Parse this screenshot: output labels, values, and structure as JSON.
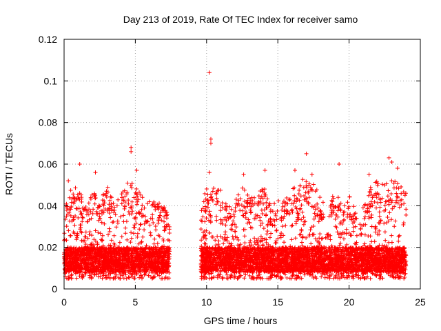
{
  "chart_data": {
    "type": "scatter",
    "title": "Day 213 of 2019, Rate Of TEC Index for receiver samo",
    "xlabel": "GPS time / hours",
    "ylabel": "ROTI / TECUs",
    "xlim": [
      0,
      25
    ],
    "ylim": [
      0,
      0.12
    ],
    "xticks": [
      "0",
      "5",
      "10",
      "15",
      "20",
      "25"
    ],
    "yticks": [
      "0",
      "0.02",
      "0.04",
      "0.06",
      "0.08",
      "0.1",
      "0.12"
    ],
    "grid": true,
    "marker": "+",
    "color": "#ff0000",
    "data_segments": [
      {
        "x_start": 0.0,
        "x_end": 7.4
      },
      {
        "x_start": 9.6,
        "x_end": 24.0
      }
    ],
    "notable_points": [
      {
        "x": 10.2,
        "y": 0.104
      },
      {
        "x": 10.3,
        "y": 0.072
      },
      {
        "x": 10.3,
        "y": 0.07
      },
      {
        "x": 4.7,
        "y": 0.068
      },
      {
        "x": 4.7,
        "y": 0.066
      },
      {
        "x": 17.0,
        "y": 0.065
      },
      {
        "x": 22.8,
        "y": 0.063
      },
      {
        "x": 1.1,
        "y": 0.06
      },
      {
        "x": 19.3,
        "y": 0.06
      },
      {
        "x": 23.0,
        "y": 0.061
      },
      {
        "x": 23.4,
        "y": 0.058
      },
      {
        "x": 10.2,
        "y": 0.056
      },
      {
        "x": 14.1,
        "y": 0.057
      },
      {
        "x": 0.3,
        "y": 0.052
      },
      {
        "x": 5.1,
        "y": 0.057
      },
      {
        "x": 2.2,
        "y": 0.056
      },
      {
        "x": 12.6,
        "y": 0.055
      },
      {
        "x": 16.2,
        "y": 0.057
      },
      {
        "x": 17.4,
        "y": 0.055
      },
      {
        "x": 21.4,
        "y": 0.055
      }
    ],
    "envelope": [
      {
        "x": 0.0,
        "y": 0.04
      },
      {
        "x": 0.5,
        "y": 0.048
      },
      {
        "x": 1.0,
        "y": 0.05
      },
      {
        "x": 1.5,
        "y": 0.04
      },
      {
        "x": 2.0,
        "y": 0.046
      },
      {
        "x": 2.5,
        "y": 0.046
      },
      {
        "x": 3.0,
        "y": 0.05
      },
      {
        "x": 3.5,
        "y": 0.044
      },
      {
        "x": 4.0,
        "y": 0.046
      },
      {
        "x": 4.5,
        "y": 0.052
      },
      {
        "x": 5.0,
        "y": 0.05
      },
      {
        "x": 5.5,
        "y": 0.044
      },
      {
        "x": 6.0,
        "y": 0.042
      },
      {
        "x": 6.5,
        "y": 0.044
      },
      {
        "x": 7.0,
        "y": 0.04
      },
      {
        "x": 7.4,
        "y": 0.036
      },
      {
        "x": 9.6,
        "y": 0.038
      },
      {
        "x": 10.0,
        "y": 0.05
      },
      {
        "x": 10.5,
        "y": 0.05
      },
      {
        "x": 11.0,
        "y": 0.048
      },
      {
        "x": 11.5,
        "y": 0.04
      },
      {
        "x": 12.0,
        "y": 0.044
      },
      {
        "x": 12.5,
        "y": 0.05
      },
      {
        "x": 13.0,
        "y": 0.044
      },
      {
        "x": 13.5,
        "y": 0.046
      },
      {
        "x": 14.0,
        "y": 0.05
      },
      {
        "x": 14.5,
        "y": 0.04
      },
      {
        "x": 15.0,
        "y": 0.044
      },
      {
        "x": 15.5,
        "y": 0.042
      },
      {
        "x": 16.0,
        "y": 0.05
      },
      {
        "x": 16.5,
        "y": 0.05
      },
      {
        "x": 17.0,
        "y": 0.056
      },
      {
        "x": 17.5,
        "y": 0.052
      },
      {
        "x": 18.0,
        "y": 0.044
      },
      {
        "x": 18.5,
        "y": 0.038
      },
      {
        "x": 19.0,
        "y": 0.048
      },
      {
        "x": 19.5,
        "y": 0.044
      },
      {
        "x": 20.0,
        "y": 0.046
      },
      {
        "x": 20.5,
        "y": 0.038
      },
      {
        "x": 21.0,
        "y": 0.04
      },
      {
        "x": 21.5,
        "y": 0.05
      },
      {
        "x": 22.0,
        "y": 0.052
      },
      {
        "x": 22.5,
        "y": 0.052
      },
      {
        "x": 23.0,
        "y": 0.054
      },
      {
        "x": 23.5,
        "y": 0.05
      },
      {
        "x": 24.0,
        "y": 0.048
      }
    ],
    "typical_floor": 0.005,
    "typical_band": [
      0.008,
      0.02
    ]
  }
}
